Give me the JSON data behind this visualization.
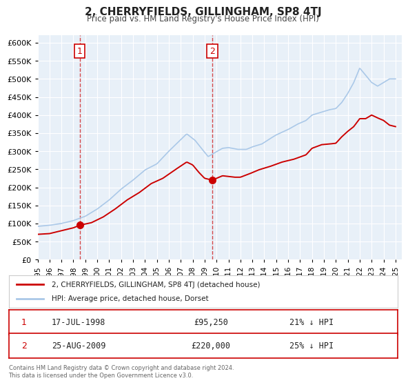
{
  "title": "2, CHERRYFIELDS, GILLINGHAM, SP8 4TJ",
  "subtitle": "Price paid vs. HM Land Registry's House Price Index (HPI)",
  "ylabel": "",
  "background_color": "#ffffff",
  "plot_bg_color": "#e8f0f8",
  "grid_color": "#ffffff",
  "red_line_color": "#cc0000",
  "blue_line_color": "#aac8e8",
  "sale1_date": "17-JUL-1998",
  "sale1_price": 95250,
  "sale1_hpi_pct": "21% ↓ HPI",
  "sale2_date": "25-AUG-2009",
  "sale2_price": 220000,
  "sale2_hpi_pct": "25% ↓ HPI",
  "sale1_x": 1998.54,
  "sale2_x": 2009.65,
  "legend_label1": "2, CHERRYFIELDS, GILLINGHAM, SP8 4TJ (detached house)",
  "legend_label2": "HPI: Average price, detached house, Dorset",
  "footer": "Contains HM Land Registry data © Crown copyright and database right 2024.\nThis data is licensed under the Open Government Licence v3.0.",
  "ylim": [
    0,
    620000
  ],
  "xlim_start": 1995.0,
  "xlim_end": 2025.5,
  "yticks": [
    0,
    50000,
    100000,
    150000,
    200000,
    250000,
    300000,
    350000,
    400000,
    450000,
    500000,
    550000,
    600000
  ]
}
